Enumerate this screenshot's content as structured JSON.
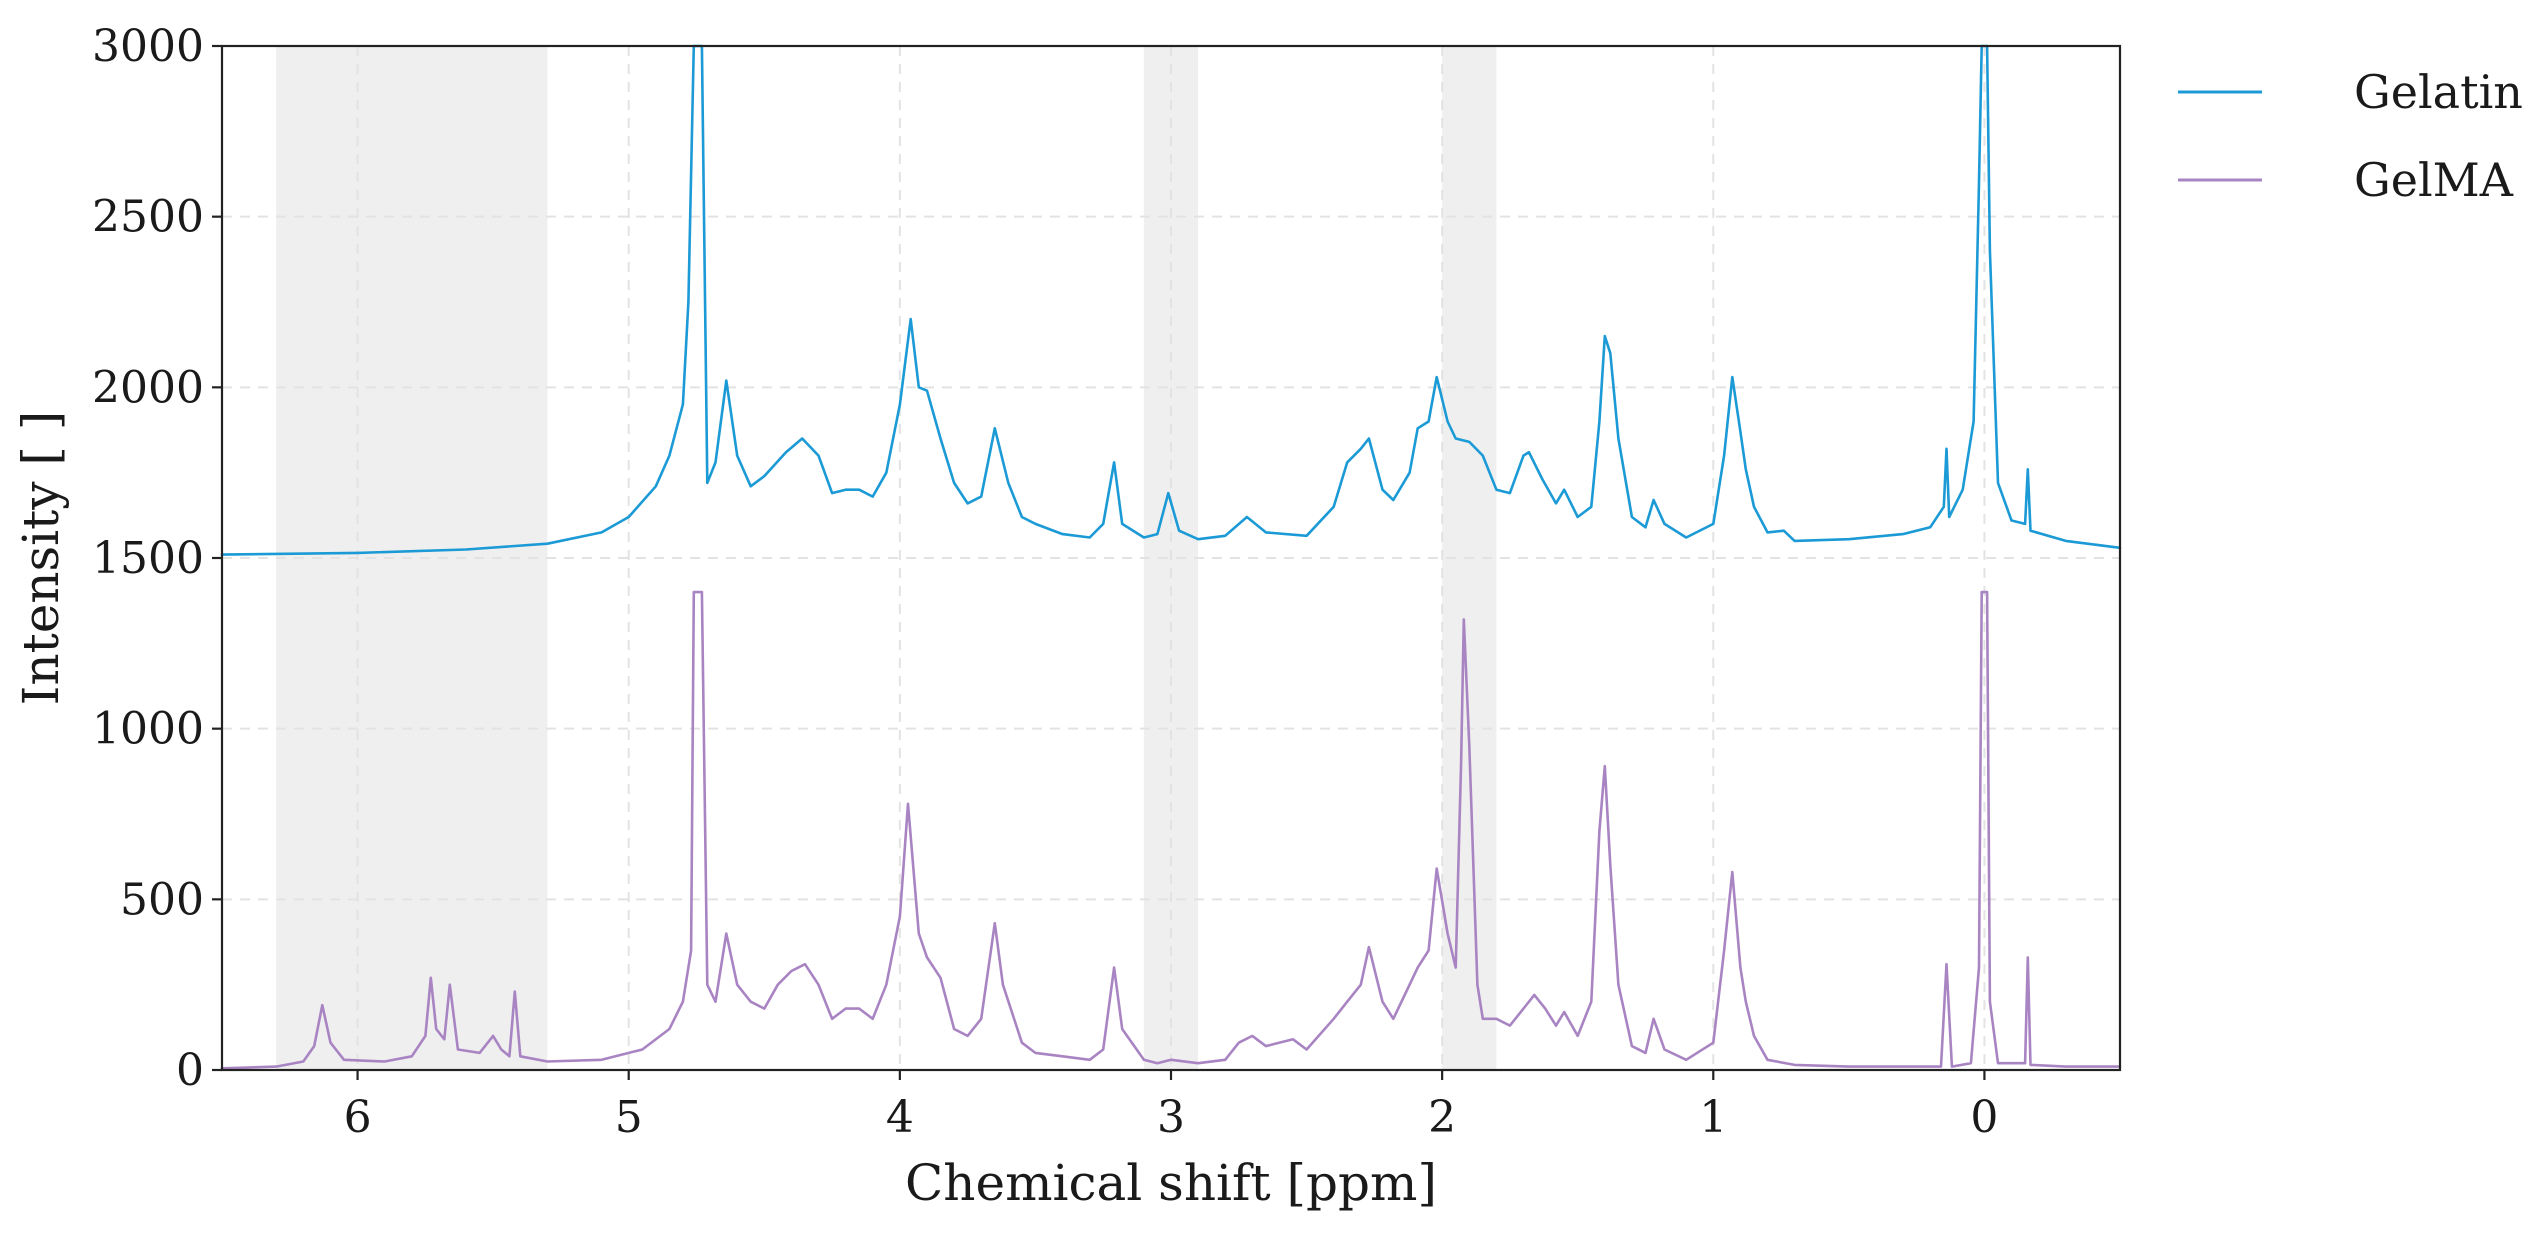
{
  "chart_data": {
    "type": "line",
    "title": "",
    "xlabel": "Chemical shift [ppm]",
    "ylabel": "Intensity [ ]",
    "xlim": [
      6.5,
      -0.5
    ],
    "ylim": [
      0,
      3000
    ],
    "x_reversed": true,
    "x_ticks": [
      6,
      5,
      4,
      3,
      2,
      1,
      0
    ],
    "y_ticks": [
      0,
      500,
      1000,
      1500,
      2000,
      2500,
      3000
    ],
    "grid": true,
    "legend_position": "outside-right-top",
    "highlight_bands_ppm": [
      [
        5.3,
        6.3
      ],
      [
        2.9,
        3.1
      ],
      [
        1.8,
        2.0
      ]
    ],
    "series": [
      {
        "name": "Gelatin",
        "color": "#1b9ad6",
        "points": [
          [
            6.5,
            1510
          ],
          [
            6.0,
            1515
          ],
          [
            5.6,
            1525
          ],
          [
            5.3,
            1542
          ],
          [
            5.1,
            1575
          ],
          [
            5.0,
            1620
          ],
          [
            4.9,
            1710
          ],
          [
            4.85,
            1800
          ],
          [
            4.8,
            1950
          ],
          [
            4.78,
            2250
          ],
          [
            4.76,
            3000
          ],
          [
            4.73,
            3000
          ],
          [
            4.71,
            1720
          ],
          [
            4.68,
            1780
          ],
          [
            4.64,
            2020
          ],
          [
            4.6,
            1800
          ],
          [
            4.55,
            1710
          ],
          [
            4.5,
            1740
          ],
          [
            4.42,
            1810
          ],
          [
            4.36,
            1850
          ],
          [
            4.3,
            1800
          ],
          [
            4.25,
            1690
          ],
          [
            4.2,
            1700
          ],
          [
            4.15,
            1700
          ],
          [
            4.1,
            1680
          ],
          [
            4.05,
            1750
          ],
          [
            4.0,
            1950
          ],
          [
            3.96,
            2200
          ],
          [
            3.93,
            2000
          ],
          [
            3.9,
            1990
          ],
          [
            3.85,
            1850
          ],
          [
            3.8,
            1720
          ],
          [
            3.75,
            1660
          ],
          [
            3.7,
            1680
          ],
          [
            3.65,
            1880
          ],
          [
            3.6,
            1720
          ],
          [
            3.55,
            1620
          ],
          [
            3.5,
            1600
          ],
          [
            3.4,
            1570
          ],
          [
            3.3,
            1560
          ],
          [
            3.25,
            1600
          ],
          [
            3.21,
            1780
          ],
          [
            3.18,
            1600
          ],
          [
            3.1,
            1560
          ],
          [
            3.05,
            1570
          ],
          [
            3.01,
            1690
          ],
          [
            2.97,
            1580
          ],
          [
            2.9,
            1555
          ],
          [
            2.8,
            1565
          ],
          [
            2.72,
            1620
          ],
          [
            2.65,
            1575
          ],
          [
            2.5,
            1565
          ],
          [
            2.4,
            1650
          ],
          [
            2.35,
            1780
          ],
          [
            2.3,
            1820
          ],
          [
            2.27,
            1850
          ],
          [
            2.22,
            1700
          ],
          [
            2.18,
            1670
          ],
          [
            2.12,
            1750
          ],
          [
            2.09,
            1880
          ],
          [
            2.05,
            1900
          ],
          [
            2.02,
            2030
          ],
          [
            1.98,
            1900
          ],
          [
            1.95,
            1850
          ],
          [
            1.9,
            1840
          ],
          [
            1.85,
            1800
          ],
          [
            1.8,
            1700
          ],
          [
            1.75,
            1690
          ],
          [
            1.7,
            1800
          ],
          [
            1.68,
            1810
          ],
          [
            1.63,
            1730
          ],
          [
            1.58,
            1660
          ],
          [
            1.55,
            1700
          ],
          [
            1.5,
            1620
          ],
          [
            1.45,
            1650
          ],
          [
            1.42,
            1900
          ],
          [
            1.4,
            2150
          ],
          [
            1.38,
            2100
          ],
          [
            1.35,
            1850
          ],
          [
            1.3,
            1620
          ],
          [
            1.25,
            1590
          ],
          [
            1.22,
            1670
          ],
          [
            1.18,
            1600
          ],
          [
            1.1,
            1560
          ],
          [
            1.0,
            1600
          ],
          [
            0.96,
            1800
          ],
          [
            0.93,
            2030
          ],
          [
            0.9,
            1870
          ],
          [
            0.88,
            1760
          ],
          [
            0.85,
            1650
          ],
          [
            0.8,
            1575
          ],
          [
            0.74,
            1580
          ],
          [
            0.7,
            1550
          ],
          [
            0.5,
            1555
          ],
          [
            0.3,
            1570
          ],
          [
            0.2,
            1590
          ],
          [
            0.15,
            1650
          ],
          [
            0.14,
            1820
          ],
          [
            0.13,
            1620
          ],
          [
            0.08,
            1700
          ],
          [
            0.04,
            1900
          ],
          [
            0.02,
            2600
          ],
          [
            0.01,
            3000
          ],
          [
            -0.01,
            3000
          ],
          [
            -0.02,
            2400
          ],
          [
            -0.05,
            1720
          ],
          [
            -0.1,
            1610
          ],
          [
            -0.15,
            1600
          ],
          [
            -0.16,
            1760
          ],
          [
            -0.17,
            1580
          ],
          [
            -0.3,
            1550
          ],
          [
            -0.5,
            1530
          ]
        ]
      },
      {
        "name": "GelMA",
        "color": "#a984c3",
        "points": [
          [
            6.5,
            5
          ],
          [
            6.3,
            10
          ],
          [
            6.2,
            25
          ],
          [
            6.16,
            70
          ],
          [
            6.13,
            190
          ],
          [
            6.1,
            80
          ],
          [
            6.05,
            30
          ],
          [
            5.9,
            25
          ],
          [
            5.8,
            40
          ],
          [
            5.75,
            100
          ],
          [
            5.73,
            270
          ],
          [
            5.71,
            120
          ],
          [
            5.68,
            90
          ],
          [
            5.66,
            250
          ],
          [
            5.63,
            60
          ],
          [
            5.55,
            50
          ],
          [
            5.5,
            100
          ],
          [
            5.47,
            60
          ],
          [
            5.44,
            40
          ],
          [
            5.42,
            230
          ],
          [
            5.4,
            40
          ],
          [
            5.3,
            25
          ],
          [
            5.1,
            30
          ],
          [
            4.95,
            60
          ],
          [
            4.85,
            120
          ],
          [
            4.8,
            200
          ],
          [
            4.77,
            350
          ],
          [
            4.76,
            1400
          ],
          [
            4.73,
            1400
          ],
          [
            4.71,
            250
          ],
          [
            4.68,
            200
          ],
          [
            4.64,
            400
          ],
          [
            4.6,
            250
          ],
          [
            4.55,
            200
          ],
          [
            4.5,
            180
          ],
          [
            4.45,
            250
          ],
          [
            4.4,
            290
          ],
          [
            4.35,
            310
          ],
          [
            4.3,
            250
          ],
          [
            4.25,
            150
          ],
          [
            4.2,
            180
          ],
          [
            4.15,
            180
          ],
          [
            4.1,
            150
          ],
          [
            4.05,
            250
          ],
          [
            4.0,
            450
          ],
          [
            3.97,
            780
          ],
          [
            3.93,
            400
          ],
          [
            3.9,
            330
          ],
          [
            3.85,
            270
          ],
          [
            3.8,
            120
          ],
          [
            3.75,
            100
          ],
          [
            3.7,
            150
          ],
          [
            3.65,
            430
          ],
          [
            3.62,
            250
          ],
          [
            3.55,
            80
          ],
          [
            3.5,
            50
          ],
          [
            3.4,
            40
          ],
          [
            3.3,
            30
          ],
          [
            3.25,
            60
          ],
          [
            3.21,
            300
          ],
          [
            3.18,
            120
          ],
          [
            3.1,
            30
          ],
          [
            3.05,
            20
          ],
          [
            3.0,
            30
          ],
          [
            2.9,
            20
          ],
          [
            2.8,
            30
          ],
          [
            2.75,
            80
          ],
          [
            2.7,
            100
          ],
          [
            2.65,
            70
          ],
          [
            2.55,
            90
          ],
          [
            2.5,
            60
          ],
          [
            2.4,
            150
          ],
          [
            2.35,
            200
          ],
          [
            2.3,
            250
          ],
          [
            2.27,
            360
          ],
          [
            2.22,
            200
          ],
          [
            2.18,
            150
          ],
          [
            2.12,
            250
          ],
          [
            2.09,
            300
          ],
          [
            2.05,
            350
          ],
          [
            2.02,
            590
          ],
          [
            1.98,
            400
          ],
          [
            1.95,
            300
          ],
          [
            1.93,
            900
          ],
          [
            1.92,
            1320
          ],
          [
            1.9,
            950
          ],
          [
            1.87,
            250
          ],
          [
            1.85,
            150
          ],
          [
            1.8,
            150
          ],
          [
            1.75,
            130
          ],
          [
            1.7,
            180
          ],
          [
            1.66,
            220
          ],
          [
            1.62,
            180
          ],
          [
            1.58,
            130
          ],
          [
            1.55,
            170
          ],
          [
            1.5,
            100
          ],
          [
            1.45,
            200
          ],
          [
            1.42,
            700
          ],
          [
            1.4,
            890
          ],
          [
            1.38,
            600
          ],
          [
            1.35,
            250
          ],
          [
            1.3,
            70
          ],
          [
            1.25,
            50
          ],
          [
            1.22,
            150
          ],
          [
            1.18,
            60
          ],
          [
            1.1,
            30
          ],
          [
            1.0,
            80
          ],
          [
            0.96,
            350
          ],
          [
            0.93,
            580
          ],
          [
            0.9,
            300
          ],
          [
            0.88,
            200
          ],
          [
            0.85,
            100
          ],
          [
            0.8,
            30
          ],
          [
            0.7,
            15
          ],
          [
            0.5,
            10
          ],
          [
            0.3,
            10
          ],
          [
            0.16,
            10
          ],
          [
            0.14,
            310
          ],
          [
            0.12,
            10
          ],
          [
            0.05,
            20
          ],
          [
            0.02,
            300
          ],
          [
            0.01,
            1400
          ],
          [
            -0.01,
            1400
          ],
          [
            -0.02,
            200
          ],
          [
            -0.05,
            20
          ],
          [
            -0.15,
            20
          ],
          [
            -0.16,
            330
          ],
          [
            -0.17,
            15
          ],
          [
            -0.3,
            10
          ],
          [
            -0.5,
            10
          ]
        ]
      }
    ]
  }
}
